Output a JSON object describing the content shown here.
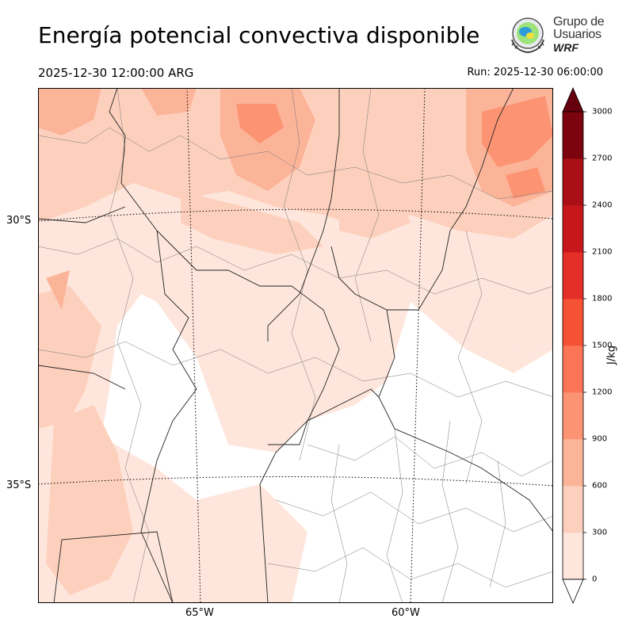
{
  "header": {
    "title": "Energía potencial convectiva disponible",
    "valid_time": "2025-12-30 12:00:00 ARG",
    "run_time": "Run: 2025-12-30 06:00:00"
  },
  "logo": {
    "line1": "Grupo de",
    "line2": "Usuarios",
    "line3": "WRF",
    "icon": "wrf-users-group-emblem-icon"
  },
  "map": {
    "type": "filled-contour-map",
    "variable": "CAPE",
    "lat_labels": [
      "30°S",
      "35°S"
    ],
    "lon_labels": [
      "65°W",
      "60°W"
    ],
    "graticule": "dotted",
    "borders": [
      "provinces",
      "departments",
      "partidos"
    ],
    "dominant_values": "mostly 0-600 J/kg; 600-1200 J/kg in the north and northeast; 0 J/kg over Buenos Aires"
  },
  "colorbar": {
    "unit": "J/kg",
    "ticks": [
      "0",
      "300",
      "600",
      "900",
      "1200",
      "1500",
      "1800",
      "2100",
      "2400",
      "2700",
      "3000"
    ],
    "levels": [
      0,
      300,
      600,
      900,
      1200,
      1500,
      1800,
      2100,
      2400,
      2700,
      3000
    ],
    "extend": "both",
    "colors": [
      "#fee6dc",
      "#fdd0bd",
      "#fcb499",
      "#fc9474",
      "#fb7456",
      "#f55135",
      "#e32f27",
      "#c8171c",
      "#a90f15",
      "#7c040e"
    ],
    "over_color": "#67000d",
    "under_color": "#ffffff"
  }
}
